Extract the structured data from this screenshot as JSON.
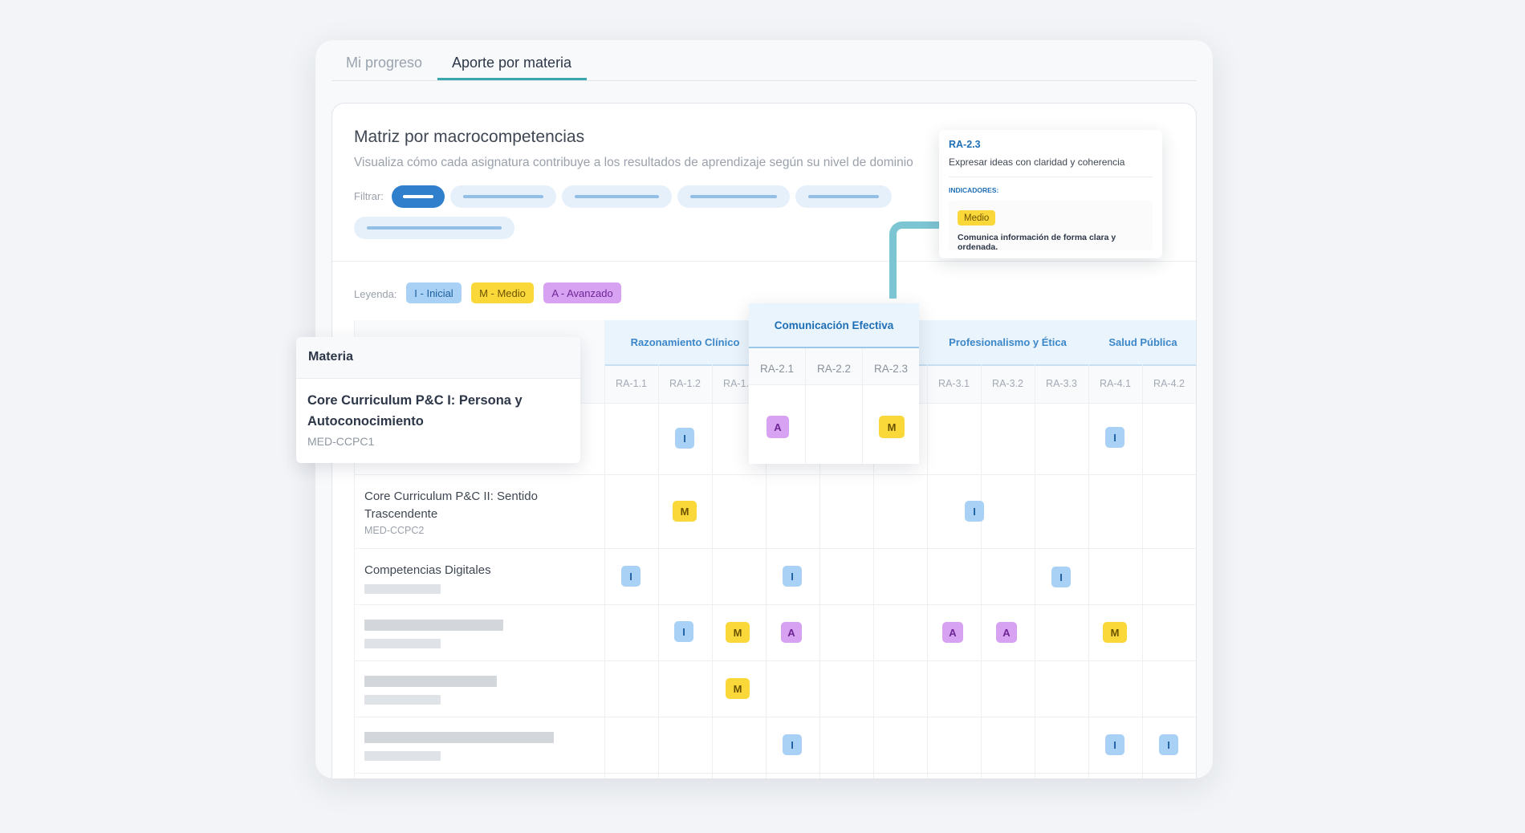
{
  "tabs": [
    {
      "label": "Mi progreso",
      "active": false
    },
    {
      "label": "Aporte por materia",
      "active": true
    }
  ],
  "panel": {
    "title": "Matriz por macrocompetencias",
    "subtitle": "Visualiza cómo cada asignatura contribuye a los resultados de aprendizaje según su nivel de dominio",
    "filter_label": "Filtrar:",
    "legend_label": "Leyenda:"
  },
  "legend": [
    {
      "label": "I - Inicial",
      "level": "I"
    },
    {
      "label": "M - Medio",
      "level": "M"
    },
    {
      "label": "A - Avanzado",
      "level": "A"
    }
  ],
  "colors": {
    "accent": "#3aa6ad",
    "primary_blue": "#2f7fcd",
    "level_I": "#a9d1f5",
    "level_M": "#fbd83a",
    "level_A": "#d7a2f1"
  },
  "groups": [
    {
      "name": "Razonamiento Clínico",
      "ras": [
        "RA-1.1",
        "RA-1.2",
        "RA-1.3"
      ]
    },
    {
      "name": "Comunicación Efectiva",
      "ras": [
        "RA-2.1",
        "RA-2.2",
        "RA-2.3"
      ]
    },
    {
      "name": "Profesionalismo y Ética",
      "ras": [
        "RA-3.1",
        "RA-3.2",
        "RA-3.3"
      ]
    },
    {
      "name": "Salud Pública",
      "ras": [
        "RA-4.1",
        "RA-4.2"
      ]
    }
  ],
  "materia_header": "Materia",
  "subjects": [
    {
      "name": "Core Curriculum P&C I: Persona y Autoconocimiento",
      "code": "MED-CCPC1",
      "levels": [
        "",
        "I",
        "",
        "A",
        "",
        "M",
        "",
        "",
        "",
        "I",
        ""
      ]
    },
    {
      "name": "Core Curriculum P&C II: Sentido Trascendente",
      "code": "MED-CCPC2",
      "levels": [
        "",
        "M",
        "",
        "",
        "",
        "",
        "I",
        "",
        "",
        "",
        ""
      ]
    },
    {
      "name": "Competencias Digitales",
      "code": "",
      "levels": [
        "I",
        "",
        "",
        "I",
        "",
        "",
        "",
        "",
        "I",
        "",
        ""
      ]
    },
    {
      "name": "",
      "code": "",
      "levels": [
        "",
        "I",
        "M",
        "A",
        "",
        "",
        "A",
        "A",
        "",
        "M",
        ""
      ]
    },
    {
      "name": "",
      "code": "",
      "levels": [
        "",
        "",
        "M",
        "",
        "",
        "",
        "",
        "",
        "",
        "",
        ""
      ]
    },
    {
      "name": "",
      "code": "",
      "levels": [
        "",
        "",
        "",
        "I",
        "",
        "",
        "",
        "",
        "",
        "I",
        "I"
      ]
    }
  ],
  "tooltip": {
    "code": "RA-2.3",
    "description": "Expresar ideas con claridad y coherencia",
    "indicators_label": "INDICADORES:",
    "level": "Medio",
    "text": "Comunica información de forma clara y ordenada."
  }
}
